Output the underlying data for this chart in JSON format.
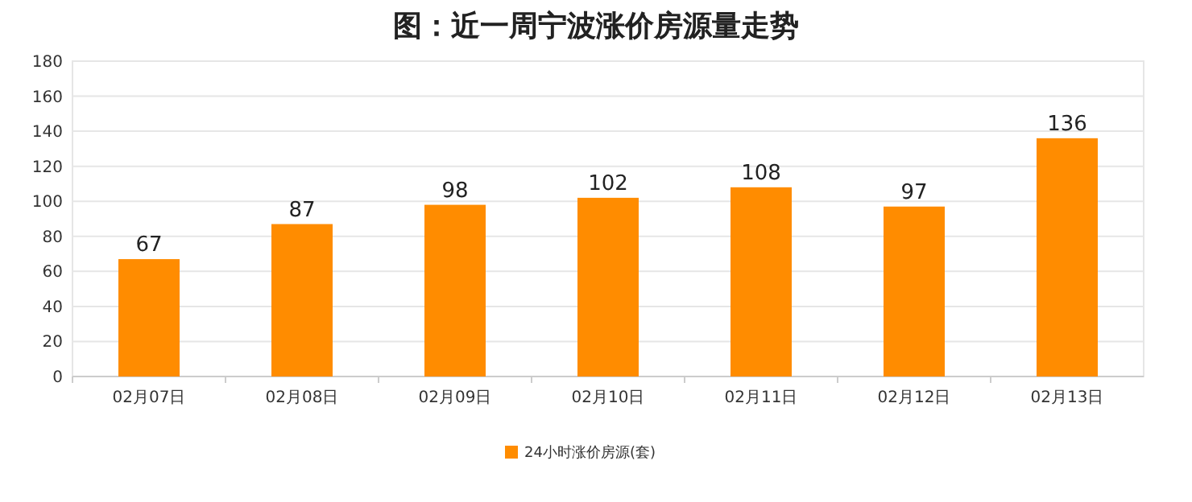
{
  "chart_data": {
    "type": "bar",
    "title": "图：近一周宁波涨价房源量走势",
    "categories": [
      "02月07日",
      "02月08日",
      "02月09日",
      "02月10日",
      "02月11日",
      "02月12日",
      "02月13日"
    ],
    "series": [
      {
        "name": "24小时涨价房源(套)",
        "color": "#ff8c00",
        "values": [
          67,
          87,
          98,
          102,
          108,
          97,
          136
        ]
      }
    ],
    "ylim": [
      0,
      180
    ],
    "yticks": [
      0,
      20,
      40,
      60,
      80,
      100,
      120,
      140,
      160,
      180
    ],
    "grid": "y",
    "legend": "bottom",
    "data_labels": true
  }
}
